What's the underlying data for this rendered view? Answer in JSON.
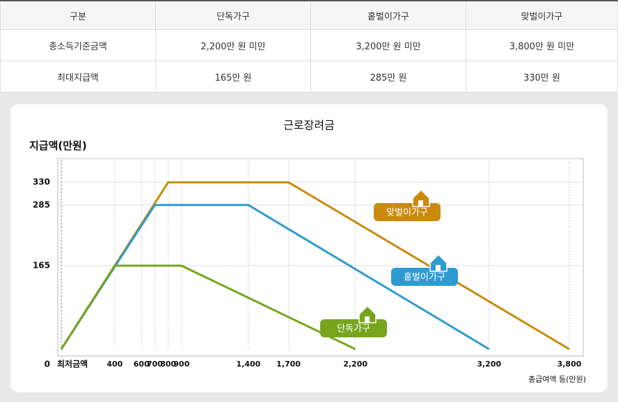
{
  "table": {
    "header": [
      "구분",
      "단독가구",
      "홑벌이가구",
      "맞벌이가구"
    ],
    "rows": [
      [
        "총소득기준금액",
        "2,200만 원 미만",
        "3,200만 원 미만",
        "3,800만 원 미만"
      ],
      [
        "최대지급액",
        "165만 원",
        "285만 원",
        "330만 원"
      ]
    ]
  },
  "chart_data": {
    "type": "line",
    "title": "근로장려금",
    "y_label": "지급액(만원)",
    "x_label": "총급여액 등(만원)",
    "annotation": "최저금액",
    "xlim": [
      0,
      3800
    ],
    "ylim": [
      0,
      380
    ],
    "xticks": [
      400,
      600,
      700,
      800,
      900,
      {
        "value": 1400,
        "label": "1,400"
      },
      {
        "value": 1700,
        "label": "1,700"
      },
      {
        "value": 2200,
        "label": "2,200"
      },
      {
        "value": 3200,
        "label": "3,200"
      },
      {
        "value": 3800,
        "label": "3,800"
      }
    ],
    "yticks": [
      0,
      165,
      285,
      330
    ],
    "series": [
      {
        "name": "맞벌이가구",
        "color": "#c98a0e",
        "x": [
          0,
          800,
          1700,
          3800
        ],
        "values": [
          0,
          330,
          330,
          0
        ]
      },
      {
        "name": "홑벌이가구",
        "color": "#2e9bd0",
        "x": [
          0,
          700,
          1400,
          3200
        ],
        "values": [
          0,
          285,
          285,
          0
        ]
      },
      {
        "name": "단독가구",
        "color": "#76a51d",
        "x": [
          0,
          400,
          900,
          2200
        ],
        "values": [
          0,
          165,
          165,
          0
        ]
      }
    ]
  }
}
